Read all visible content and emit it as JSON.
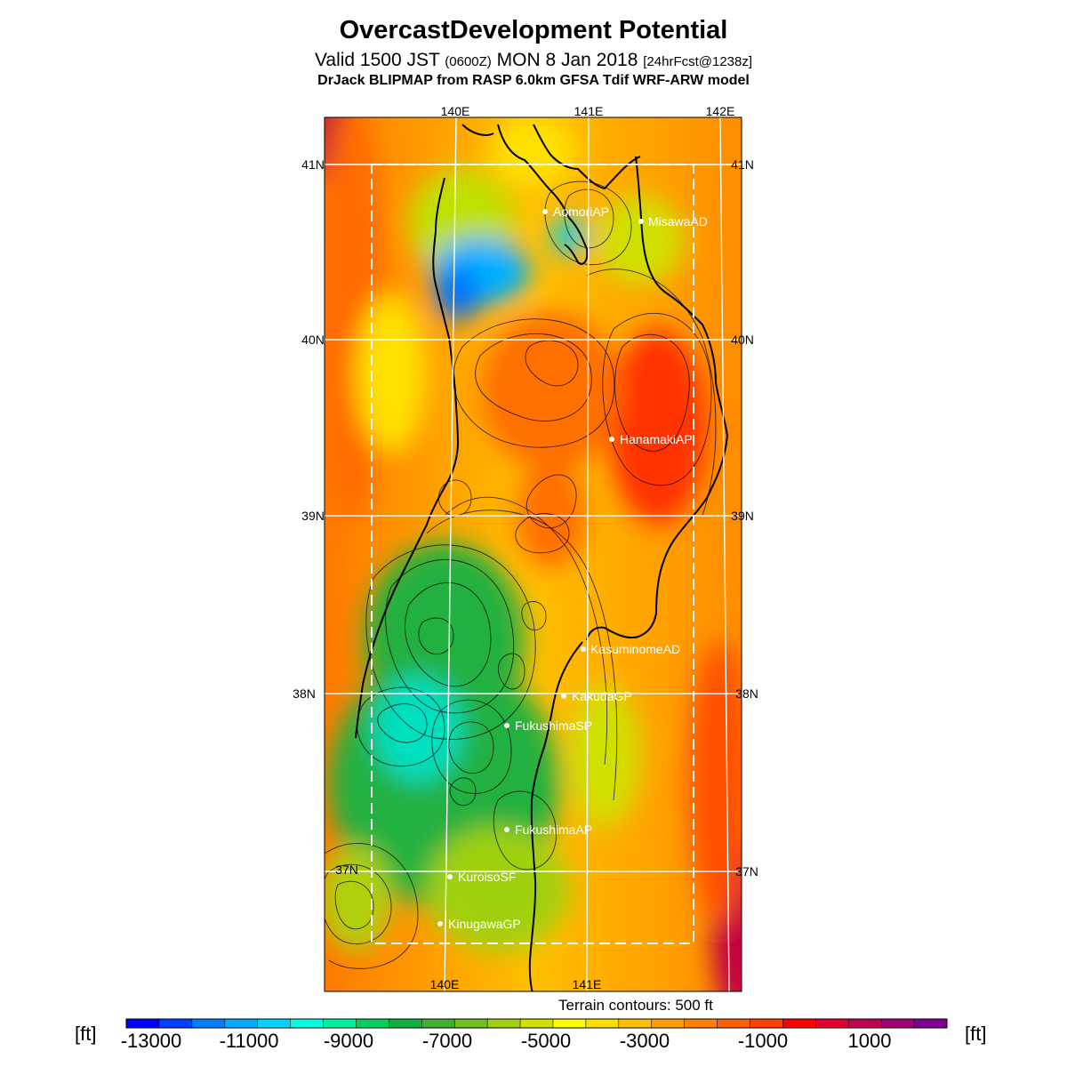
{
  "header": {
    "title": "OvercastDevelopment Potential",
    "valid_prefix": "Valid 1500 JST",
    "valid_z": "(0600Z)",
    "valid_date": "MON 8 Jan 2018",
    "forecast": "[24hrFcst@1238z]",
    "model": "DrJack BLIPMAP from RASP 6.0km GFSA Tdif WRF-ARW model"
  },
  "map": {
    "lon_labels_top": [
      "140E",
      "141E",
      "142E"
    ],
    "lon_labels_bottom": [
      "140E",
      "141E"
    ],
    "lat_labels": [
      "41N",
      "40N",
      "39N",
      "38N",
      "37N"
    ],
    "stations": [
      {
        "name": "AomoriAP"
      },
      {
        "name": "MisawaAD"
      },
      {
        "name": "HanamakiAP"
      },
      {
        "name": "KasuminomeAD"
      },
      {
        "name": "KakudaGP"
      },
      {
        "name": "FukushimaSP"
      },
      {
        "name": "FukushimaAP"
      },
      {
        "name": "KuroisoSF"
      },
      {
        "name": "KinugawaGP"
      }
    ],
    "terrain_note": "Terrain contours: 500 ft"
  },
  "colorbar": {
    "unit": "[ft]",
    "labels": [
      "-13000",
      "-11000",
      "-9000",
      "-7000",
      "-5000",
      "-3000",
      "-1000",
      "1000"
    ],
    "colors": [
      "#0000ff",
      "#0040ff",
      "#0080ff",
      "#00aaff",
      "#00d4ff",
      "#00ffdd",
      "#00f0a0",
      "#00d060",
      "#10b040",
      "#40b030",
      "#70c020",
      "#a0d010",
      "#d0e000",
      "#ffff00",
      "#ffe000",
      "#ffc000",
      "#ffa000",
      "#ff8000",
      "#ff6000",
      "#ff4000",
      "#ff0000",
      "#e00030",
      "#c00050",
      "#a00070",
      "#800090"
    ]
  }
}
